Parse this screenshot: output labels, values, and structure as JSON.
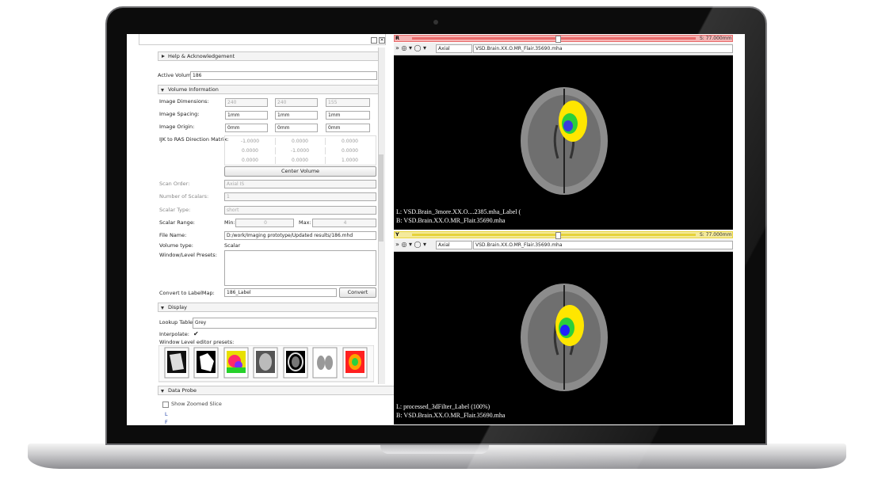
{
  "panel": {
    "help": "Help & Acknowledgement",
    "active_volume_label": "Active Volume",
    "active_volume": "186",
    "volume_info": "Volume Information",
    "dimensions_label": "Image Dimensions:",
    "dimensions": [
      "240",
      "240",
      "155"
    ],
    "spacing_label": "Image Spacing:",
    "spacing": [
      "1mm",
      "1mm",
      "1mm"
    ],
    "origin_label": "Image Origin:",
    "origin": [
      "0mm",
      "0mm",
      "0mm"
    ],
    "matrix_label": "IJK to RAS Direction Matrix:",
    "matrix": [
      [
        "-1.0000",
        "0.0000",
        "0.0000"
      ],
      [
        "0.0000",
        "-1.0000",
        "0.0000"
      ],
      [
        "0.0000",
        "0.0000",
        "1.0000"
      ]
    ],
    "center_volume": "Center Volume",
    "scan_order_label": "Scan Order:",
    "scan_order": "Axial IS",
    "num_scalars_label": "Number of Scalars:",
    "num_scalars": "1",
    "scalar_type_label": "Scalar Type:",
    "scalar_type": "short",
    "scalar_range_label": "Scalar Range:",
    "min_label": "Min:",
    "min": "0",
    "max_label": "Max:",
    "max": "4",
    "file_name_label": "File Name:",
    "file_name": "D:/work/Imaging prototype/Updated results/186.mhd",
    "volume_type_label": "Volume type:",
    "volume_type": "Scalar",
    "wl_presets_label": "Window/Level Presets:",
    "convert_label": "Convert to LabelMap:",
    "convert_value": "186_Label",
    "convert_button": "Convert",
    "display": "Display",
    "lookup_label": "Lookup Table:",
    "lookup": "Grey",
    "interpolate_label": "Interpolate:",
    "wl_editor_label": "Window Level editor presets:",
    "data_probe": "Data Probe",
    "show_zoomed": "Show Zoomed Slice",
    "probe_lines": [
      "L",
      "F"
    ]
  },
  "views": [
    {
      "letter": "R",
      "offset": "S: 77.000mm",
      "orientation": "Axial",
      "volume": "VSD.Brain.XX.O.MR_Flair.35690.mha",
      "label_line": "L: VSD.Brain_3more.XX.O....2385.mha_Label (",
      "background_line": "B: VSD.Brain.XX.O.MR_Flair.35690.mha"
    },
    {
      "letter": "Y",
      "offset": "S: 77.000mm",
      "orientation": "Axial",
      "volume": "VSD.Brain.XX.O.MR_Flair.35690.mha",
      "label_line": "L: processed_3dFilter_Label (100%)",
      "background_line": "B: VSD.Brain.XX.O.MR_Flair.35690.mha"
    }
  ]
}
